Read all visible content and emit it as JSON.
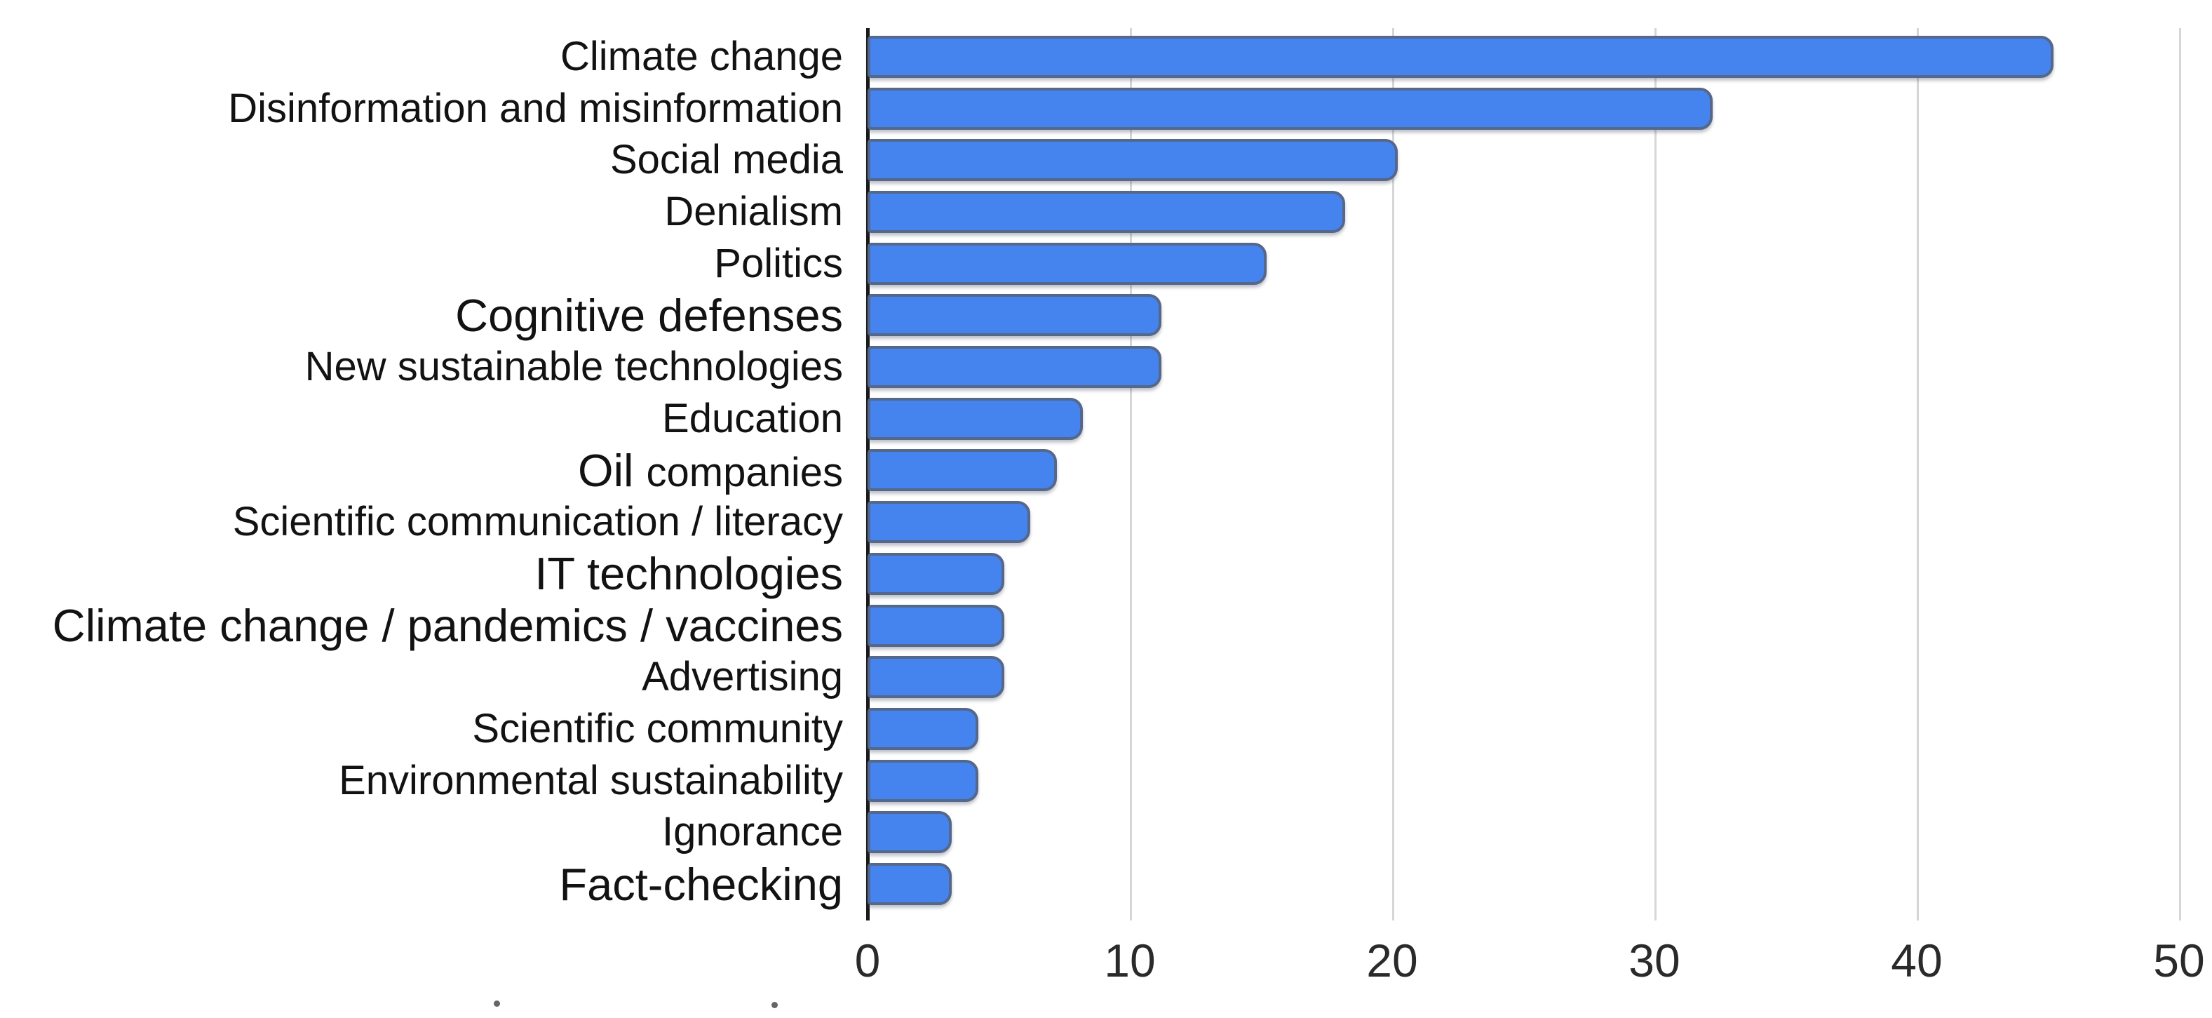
{
  "chart_data": {
    "type": "bar",
    "orientation": "horizontal",
    "title": "",
    "xlabel": "",
    "ylabel": "",
    "xlim": [
      0,
      50
    ],
    "xticks": [
      0,
      10,
      20,
      30,
      40,
      50
    ],
    "grid": "vertical-light-gray",
    "legend": "none",
    "bar_color": "#4584ee",
    "bar_border_color": "#55678a",
    "gridline_color": "#d6d6d6",
    "axis_color": "#1a1a1a",
    "tick_label_color": "#2a2a2a",
    "categories": [
      "Climate change",
      "Disinformation and misinformation",
      "Social media",
      "Denialism",
      "Politics",
      "Cognitive defenses",
      "New sustainable technologies",
      "Education",
      "Oil companies",
      "Scientific communication / literacy",
      "IT technologies",
      "Climate change / pandemics / vaccines",
      "Advertising",
      "Scientific community",
      "Environmental sustainability",
      "Ignorance",
      "Fact-checking"
    ],
    "values": [
      45,
      32,
      20,
      18,
      15,
      11,
      11,
      8,
      7,
      6,
      5,
      5,
      5,
      4,
      4,
      3,
      3
    ],
    "rows": [
      {
        "label": "Climate change",
        "value": 45,
        "parts": [
          {
            "text": "Climate change",
            "big": false
          }
        ]
      },
      {
        "label": "Disinformation and misinformation",
        "value": 32,
        "parts": [
          {
            "text": "Disinformation and misinformation",
            "big": false
          }
        ]
      },
      {
        "label": "Social media",
        "value": 20,
        "parts": [
          {
            "text": "Social media",
            "big": false
          }
        ]
      },
      {
        "label": "Denialism",
        "value": 18,
        "parts": [
          {
            "text": "Denialism",
            "big": false
          }
        ]
      },
      {
        "label": "Politics",
        "value": 15,
        "parts": [
          {
            "text": "Politics",
            "big": false
          }
        ]
      },
      {
        "label": "Cognitive defenses",
        "value": 11,
        "parts": [
          {
            "text": "Cognitive defenses",
            "big": true
          }
        ]
      },
      {
        "label": "New sustainable technologies",
        "value": 11,
        "parts": [
          {
            "text": "New sustainable technologies",
            "big": false
          }
        ]
      },
      {
        "label": "Education",
        "value": 8,
        "parts": [
          {
            "text": "Education",
            "big": false
          }
        ]
      },
      {
        "label": "Oil companies",
        "value": 7,
        "parts": [
          {
            "text": "Oil ",
            "big": true
          },
          {
            "text": "companies",
            "big": false
          }
        ]
      },
      {
        "label": "Scientific communication / literacy",
        "value": 6,
        "parts": [
          {
            "text": "Scientific communication / literacy",
            "big": false
          }
        ]
      },
      {
        "label": "IT technologies",
        "value": 5,
        "parts": [
          {
            "text": "IT technologies",
            "big": true
          }
        ]
      },
      {
        "label": "Climate change / pandemics / vaccines",
        "value": 5,
        "parts": [
          {
            "text": "Climate change / pandemics / vaccines",
            "big": true
          }
        ]
      },
      {
        "label": "Advertising",
        "value": 5,
        "parts": [
          {
            "text": "Advertising",
            "big": false
          }
        ]
      },
      {
        "label": "Scientific community",
        "value": 4,
        "parts": [
          {
            "text": "Scientific community",
            "big": false
          }
        ]
      },
      {
        "label": "Environmental sustainability",
        "value": 4,
        "parts": [
          {
            "text": "Environmental sustainability",
            "big": false
          }
        ]
      },
      {
        "label": "Ignorance",
        "value": 3,
        "parts": [
          {
            "text": "Ignorance",
            "big": false
          }
        ]
      },
      {
        "label": "Fact-checking",
        "value": 3,
        "parts": [
          {
            "text": "Fact-checking",
            "big": true
          }
        ]
      }
    ]
  }
}
